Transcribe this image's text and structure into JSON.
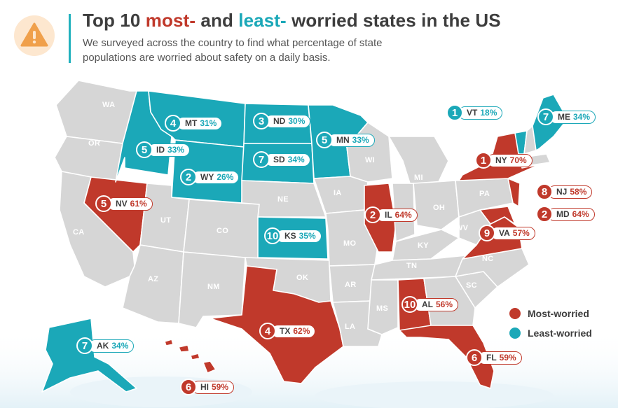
{
  "header": {
    "title_part1": "Top 10 ",
    "title_most": "most-",
    "title_part2": " and ",
    "title_least": "least-",
    "title_part3": " worried states in the US",
    "subtitle": "We surveyed across the country to find what percentage of state populations are worried about safety on a daily basis."
  },
  "colors": {
    "most": "#c0392b",
    "least": "#1ba8b8",
    "neutral": "#d6d6d6",
    "border": "#ffffff",
    "accent_bar": "#20b1bd",
    "warning_bg": "#fde7cf",
    "warning_icon": "#f0a04b"
  },
  "legend": {
    "most_label": "Most-worried",
    "least_label": "Least-worried"
  },
  "most_worried": [
    {
      "rank": "1",
      "state": "NY",
      "pct": "70%"
    },
    {
      "rank": "2",
      "state": "IL",
      "pct": "64%"
    },
    {
      "rank": "2",
      "state": "MD",
      "pct": "64%"
    },
    {
      "rank": "4",
      "state": "TX",
      "pct": "62%"
    },
    {
      "rank": "5",
      "state": "NV",
      "pct": "61%"
    },
    {
      "rank": "6",
      "state": "FL",
      "pct": "59%"
    },
    {
      "rank": "6",
      "state": "HI",
      "pct": "59%"
    },
    {
      "rank": "8",
      "state": "NJ",
      "pct": "58%"
    },
    {
      "rank": "9",
      "state": "VA",
      "pct": "57%"
    },
    {
      "rank": "10",
      "state": "AL",
      "pct": "56%"
    }
  ],
  "least_worried": [
    {
      "rank": "1",
      "state": "VT",
      "pct": "18%"
    },
    {
      "rank": "2",
      "state": "WY",
      "pct": "26%"
    },
    {
      "rank": "3",
      "state": "ND",
      "pct": "30%"
    },
    {
      "rank": "4",
      "state": "MT",
      "pct": "31%"
    },
    {
      "rank": "5",
      "state": "ID",
      "pct": "33%"
    },
    {
      "rank": "5",
      "state": "MN",
      "pct": "33%"
    },
    {
      "rank": "7",
      "state": "SD",
      "pct": "34%"
    },
    {
      "rank": "7",
      "state": "ME",
      "pct": "34%"
    },
    {
      "rank": "7",
      "state": "AK",
      "pct": "34%"
    },
    {
      "rank": "10",
      "state": "KS",
      "pct": "35%"
    }
  ],
  "neutral_state_labels": [
    "WA",
    "OR",
    "CA",
    "UT",
    "CO",
    "AZ",
    "NM",
    "NE",
    "IA",
    "MO",
    "OK",
    "AR",
    "LA",
    "MS",
    "TN",
    "KY",
    "WI",
    "MI",
    "OH",
    "PA",
    "WV",
    "NC",
    "SC",
    "GA"
  ]
}
